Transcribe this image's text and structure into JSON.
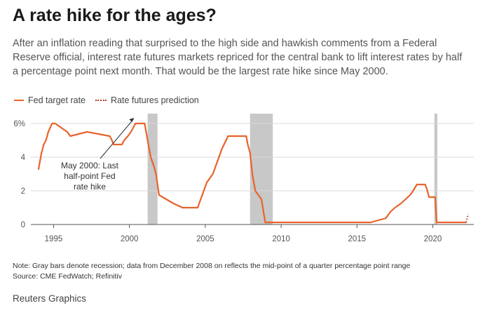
{
  "header": {
    "title": "A rate hike for the ages?",
    "subtitle": "After an inflation reading that surprised to the high side and hawkish comments from a Federal Reserve official, interest rate futures markets repriced for the central bank to lift interest rates by half a percentage point next month. That would be the largest rate hike since May 2000."
  },
  "legend": {
    "series1": "Fed target rate",
    "series2": "Rate futures prediction"
  },
  "chart_data": {
    "type": "line",
    "xlim": [
      1993.5,
      2022.7
    ],
    "ylim": [
      0,
      6.5
    ],
    "x_ticks": [
      1995,
      2000,
      2005,
      2010,
      2015,
      2020
    ],
    "y_ticks": [
      0,
      2,
      4,
      6
    ],
    "y_tick_labels": [
      "0",
      "2",
      "4",
      "6%"
    ],
    "grid": true,
    "series": [
      {
        "name": "Fed target rate",
        "color": "#e8632b",
        "x": [
          1994.0,
          1994.2,
          1994.35,
          1994.5,
          1994.65,
          1994.9,
          1995.1,
          1995.5,
          1995.9,
          1996.1,
          1997.2,
          1998.7,
          1998.85,
          1998.95,
          1999.5,
          1999.65,
          1999.9,
          2000.1,
          2000.4,
          2001.0,
          2001.1,
          2001.3,
          2001.4,
          2001.6,
          2001.75,
          2001.95,
          2002.9,
          2003.5,
          2004.5,
          2004.6,
          2004.9,
          2005.1,
          2005.5,
          2005.9,
          2006.1,
          2006.5,
          2007.7,
          2007.8,
          2007.95,
          2008.1,
          2008.3,
          2008.7,
          2008.95,
          2015.9,
          2016.9,
          2017.2,
          2017.5,
          2017.9,
          2018.2,
          2018.5,
          2018.7,
          2018.95,
          2019.5,
          2019.6,
          2019.75,
          2020.15,
          2020.25,
          2022.2
        ],
        "y": [
          3.25,
          4.25,
          4.75,
          5.0,
          5.5,
          6.0,
          6.0,
          5.75,
          5.5,
          5.25,
          5.5,
          5.25,
          5.0,
          4.75,
          4.75,
          5.0,
          5.25,
          5.5,
          6.0,
          6.0,
          5.5,
          4.5,
          4.0,
          3.5,
          3.0,
          1.75,
          1.25,
          1.0,
          1.0,
          1.25,
          2.0,
          2.5,
          3.0,
          4.0,
          4.5,
          5.25,
          5.25,
          4.75,
          4.25,
          3.0,
          2.0,
          1.5,
          0.125,
          0.125,
          0.375,
          0.75,
          1.0,
          1.25,
          1.5,
          1.75,
          2.0,
          2.375,
          2.375,
          2.125,
          1.625,
          1.625,
          0.125,
          0.125
        ]
      },
      {
        "name": "Rate futures prediction",
        "color": "#b03a2e",
        "x": [
          2022.2,
          2022.33
        ],
        "y": [
          0.125,
          0.625
        ]
      }
    ],
    "recessions": [
      [
        2001.2,
        2001.85
      ],
      [
        2007.95,
        2009.45
      ],
      [
        2020.1,
        2020.3
      ]
    ],
    "annotation": {
      "text_lines": [
        "May 2000: Last",
        "half-point Fed",
        "rate hike"
      ],
      "point": [
        2000.4,
        6.5
      ]
    }
  },
  "footer": {
    "note": "Note: Gray bars denote recession; data from December 2008 on reflects the mid-point of a quarter percentage point range",
    "source": "Source: CME FedWatch; Refinitiv",
    "credit": "Reuters Graphics"
  }
}
